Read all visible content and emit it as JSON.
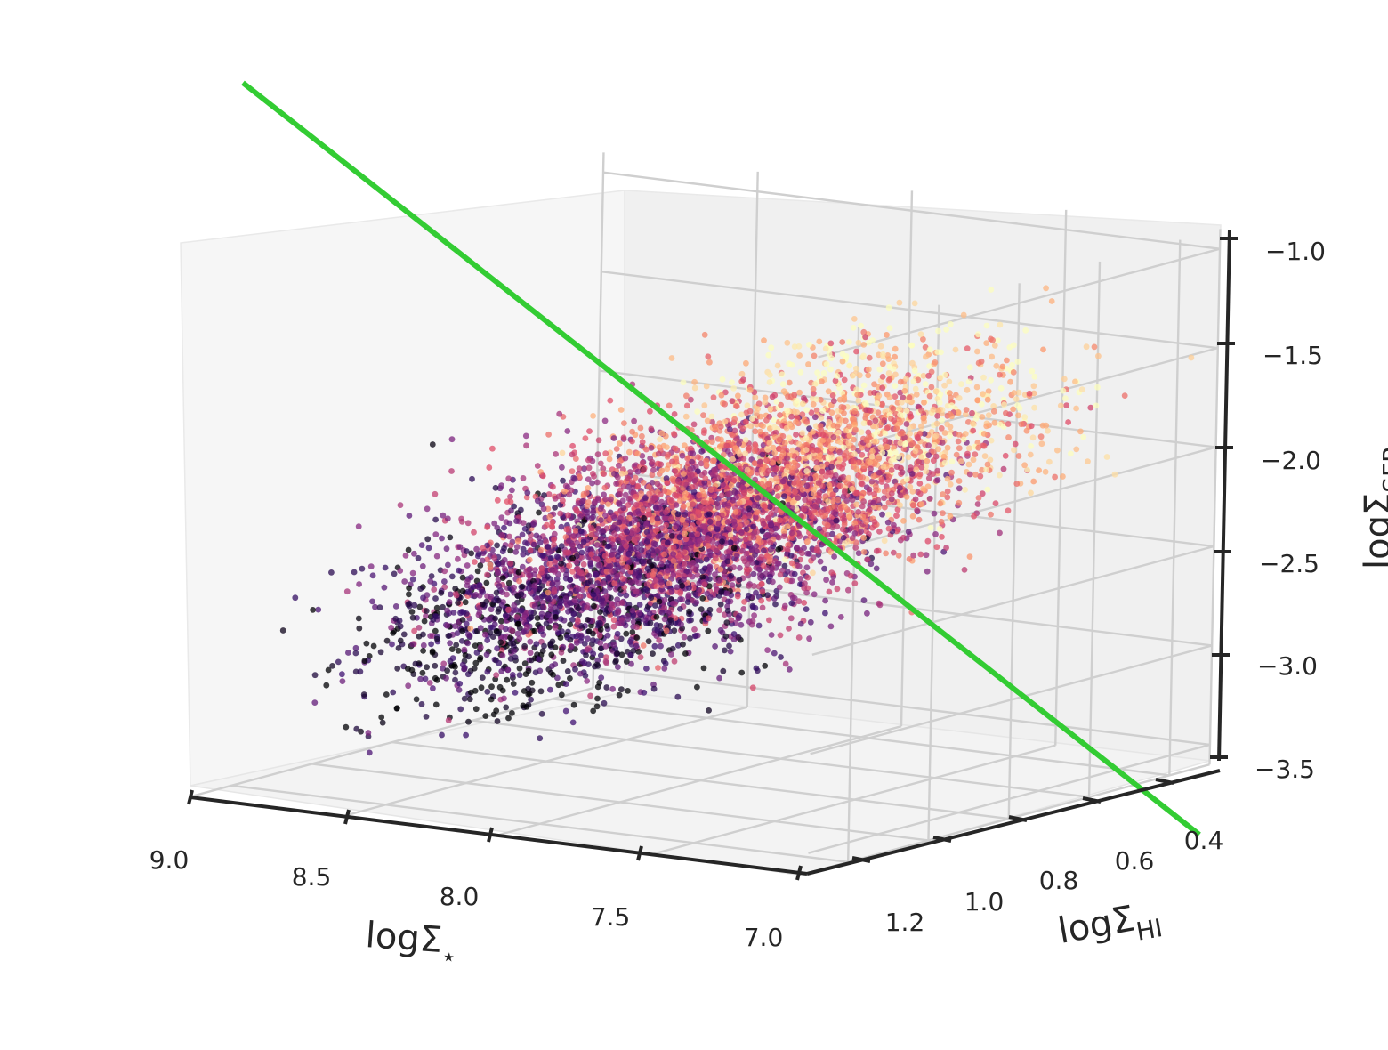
{
  "chart_data": {
    "type": "scatter",
    "projection": "3d",
    "title": "",
    "xlabel": {
      "main": "logΣ",
      "sub": "⋆"
    },
    "ylabel": {
      "main": "logΣ",
      "sub": "HI"
    },
    "zlabel": {
      "main": "logΣ",
      "sub": "SFR"
    },
    "x_ticks": [
      "9.0",
      "8.5",
      "8.0",
      "7.5",
      "7.0"
    ],
    "y_ticks": [
      "1.2",
      "1.0",
      "0.8",
      "0.6",
      "0.4"
    ],
    "z_ticks": [
      "−1.0",
      "−1.5",
      "−2.0",
      "−2.5",
      "−3.0",
      "−3.5"
    ],
    "xlim": [
      7.0,
      9.0
    ],
    "ylim": [
      0.3,
      1.3
    ],
    "zlim": [
      -3.6,
      -0.9
    ],
    "grid": true,
    "colormap": "magma",
    "color_encoding": "not labeled (no colorbar)",
    "scatter": {
      "approx_points": 6000,
      "relation_center": {
        "logSigma_star": 8.0,
        "logSigma_HI": 0.8,
        "logSigma_SFR": -2.3
      },
      "slope_x": 1.0,
      "slope_y": 0.7,
      "scatter_sigma": 0.22,
      "x_range": [
        7.0,
        9.0
      ],
      "y_range": [
        0.3,
        1.3
      ]
    },
    "fit_line": {
      "color": "#33cc33",
      "note": "straight green fit line from upper-left to lower-right"
    },
    "colors": {
      "fit_line": "#33cc33",
      "axis": "#262626",
      "grid": "#cfcfcf"
    }
  }
}
